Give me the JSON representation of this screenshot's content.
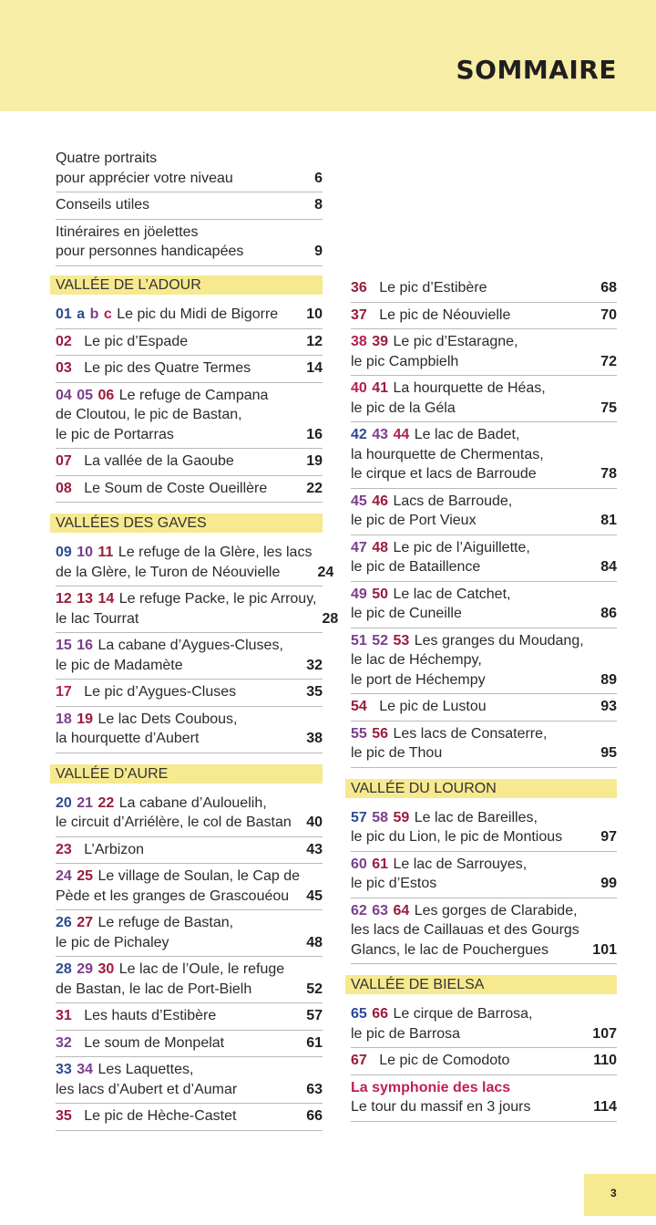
{
  "title": "SOMMAIRE",
  "page_number": "3",
  "colors": {
    "header_band": "#f8eda6",
    "section": "#f6e98f",
    "blue": "#2e4a93",
    "red": "#b32050",
    "purple": "#7a3f8c",
    "maroon": "#9a1c3c"
  },
  "intro": [
    {
      "lines": [
        "Quatre portraits",
        "pour apprécier votre niveau"
      ],
      "page": "6"
    },
    {
      "lines": [
        "Conseils utiles"
      ],
      "page": "8"
    },
    {
      "lines": [
        "Itinéraires en jöelettes",
        "pour personnes handicapées"
      ],
      "page": "9"
    }
  ],
  "left_sections": [
    {
      "title": "VALLÉE DE L’ADOUR",
      "entries": [
        {
          "nums": [
            {
              "t": "01",
              "c": "blue"
            },
            {
              "t": "a",
              "c": "blue"
            },
            {
              "t": "b",
              "c": "purple"
            },
            {
              "t": "c",
              "c": "red"
            }
          ],
          "lines": [
            "Le pic du Midi de Bigorre"
          ],
          "page": "10"
        },
        {
          "nums": [
            {
              "t": "02",
              "c": "maroon"
            }
          ],
          "lines": [
            "Le pic d’Espade"
          ],
          "page": "12"
        },
        {
          "nums": [
            {
              "t": "03",
              "c": "maroon"
            }
          ],
          "lines": [
            "Le pic des Quatre Termes"
          ],
          "page": "14"
        },
        {
          "nums": [
            {
              "t": "04",
              "c": "purple"
            },
            {
              "t": "05",
              "c": "purple"
            },
            {
              "t": "06",
              "c": "maroon"
            }
          ],
          "lines": [
            "Le refuge de Campana",
            "de Cloutou, le pic de Bastan,",
            "le pic de Portarras"
          ],
          "page": "16"
        },
        {
          "nums": [
            {
              "t": "07",
              "c": "maroon"
            }
          ],
          "lines": [
            "La vallée de la Gaoube"
          ],
          "page": "19"
        },
        {
          "nums": [
            {
              "t": "08",
              "c": "maroon"
            }
          ],
          "lines": [
            "Le Soum de Coste Oueillère"
          ],
          "page": "22"
        }
      ]
    },
    {
      "title": "VALLÉES DES GAVES",
      "entries": [
        {
          "nums": [
            {
              "t": "09",
              "c": "blue"
            },
            {
              "t": "10",
              "c": "purple"
            },
            {
              "t": "11",
              "c": "maroon"
            }
          ],
          "lines": [
            "Le refuge de la Glère, les lacs",
            "de la Glère, le Turon de Néouvielle"
          ],
          "page": "24"
        },
        {
          "nums": [
            {
              "t": "12",
              "c": "maroon"
            },
            {
              "t": "13",
              "c": "maroon"
            },
            {
              "t": "14",
              "c": "maroon"
            }
          ],
          "lines": [
            "Le refuge Packe, le pic Arrouy,",
            "le lac Tourrat"
          ],
          "page": "28"
        },
        {
          "nums": [
            {
              "t": "15",
              "c": "purple"
            },
            {
              "t": "16",
              "c": "purple"
            }
          ],
          "lines": [
            "La cabane d’Aygues-Cluses,",
            "le pic de Madamète"
          ],
          "page": "32"
        },
        {
          "nums": [
            {
              "t": "17",
              "c": "red"
            }
          ],
          "lines": [
            "Le pic d’Aygues-Cluses"
          ],
          "page": "35"
        },
        {
          "nums": [
            {
              "t": "18",
              "c": "purple"
            },
            {
              "t": "19",
              "c": "maroon"
            }
          ],
          "lines": [
            "Le lac Dets Coubous,",
            "la hourquette d’Aubert"
          ],
          "page": "38"
        }
      ]
    },
    {
      "title": "VALLÉE D’AURE",
      "entries": [
        {
          "nums": [
            {
              "t": "20",
              "c": "blue"
            },
            {
              "t": "21",
              "c": "purple"
            },
            {
              "t": "22",
              "c": "maroon"
            }
          ],
          "lines": [
            "La cabane d’Aulouelih,",
            "le circuit d’Arriélère, le col de Bastan"
          ],
          "page": "40"
        },
        {
          "nums": [
            {
              "t": "23",
              "c": "maroon"
            }
          ],
          "lines": [
            "L’Arbizon"
          ],
          "page": "43"
        },
        {
          "nums": [
            {
              "t": "24",
              "c": "purple"
            },
            {
              "t": "25",
              "c": "maroon"
            }
          ],
          "lines": [
            "Le village de Soulan, le Cap de",
            "Pède et les granges de Grascouéou"
          ],
          "page": "45"
        },
        {
          "nums": [
            {
              "t": "26",
              "c": "blue"
            },
            {
              "t": "27",
              "c": "maroon"
            }
          ],
          "lines": [
            "Le refuge de Bastan,",
            "le pic de Pichaley"
          ],
          "page": "48"
        },
        {
          "nums": [
            {
              "t": "28",
              "c": "blue"
            },
            {
              "t": "29",
              "c": "purple"
            },
            {
              "t": "30",
              "c": "maroon"
            }
          ],
          "lines": [
            "Le lac de l’Oule, le refuge",
            "de Bastan, le lac de Port-Bielh"
          ],
          "page": "52"
        },
        {
          "nums": [
            {
              "t": "31",
              "c": "maroon"
            }
          ],
          "lines": [
            "Les hauts d’Estibère"
          ],
          "page": "57"
        },
        {
          "nums": [
            {
              "t": "32",
              "c": "purple"
            }
          ],
          "lines": [
            "Le soum de Monpelat"
          ],
          "page": "61"
        },
        {
          "nums": [
            {
              "t": "33",
              "c": "blue"
            },
            {
              "t": "34",
              "c": "purple"
            }
          ],
          "lines": [
            "Les Laquettes,",
            "les lacs d’Aubert et d’Aumar"
          ],
          "page": "63"
        },
        {
          "nums": [
            {
              "t": "35",
              "c": "maroon"
            }
          ],
          "lines": [
            "Le pic de Hèche-Castet"
          ],
          "page": "66"
        }
      ]
    }
  ],
  "right_sections": [
    {
      "title": "",
      "entries": [
        {
          "nums": [
            {
              "t": "36",
              "c": "maroon"
            }
          ],
          "lines": [
            "Le pic d’Estibère"
          ],
          "page": "68"
        },
        {
          "nums": [
            {
              "t": "37",
              "c": "maroon"
            }
          ],
          "lines": [
            "Le pic de Néouvielle"
          ],
          "page": "70"
        },
        {
          "nums": [
            {
              "t": "38",
              "c": "red"
            },
            {
              "t": "39",
              "c": "maroon"
            }
          ],
          "lines": [
            "Le pic d’Estaragne,",
            "le pic Campbielh"
          ],
          "page": "72"
        },
        {
          "nums": [
            {
              "t": "40",
              "c": "red"
            },
            {
              "t": "41",
              "c": "maroon"
            }
          ],
          "lines": [
            "La hourquette de Héas,",
            "le pic de la Géla"
          ],
          "page": "75"
        },
        {
          "nums": [
            {
              "t": "42",
              "c": "blue"
            },
            {
              "t": "43",
              "c": "purple"
            },
            {
              "t": "44",
              "c": "red"
            }
          ],
          "lines": [
            "Le lac de Badet,",
            "la hourquette de Chermentas,",
            "le cirque et lacs de Barroude"
          ],
          "page": "78"
        },
        {
          "nums": [
            {
              "t": "45",
              "c": "purple"
            },
            {
              "t": "46",
              "c": "maroon"
            }
          ],
          "lines": [
            "Lacs de Barroude,",
            "le pic de Port Vieux"
          ],
          "page": "81"
        },
        {
          "nums": [
            {
              "t": "47",
              "c": "purple"
            },
            {
              "t": "48",
              "c": "maroon"
            }
          ],
          "lines": [
            "Le pic de l’Aiguillette,",
            "le pic de Bataillence"
          ],
          "page": "84"
        },
        {
          "nums": [
            {
              "t": "49",
              "c": "purple"
            },
            {
              "t": "50",
              "c": "maroon"
            }
          ],
          "lines": [
            "Le lac de Catchet,",
            "le pic de Cuneille"
          ],
          "page": "86"
        },
        {
          "nums": [
            {
              "t": "51",
              "c": "purple"
            },
            {
              "t": "52",
              "c": "purple"
            },
            {
              "t": "53",
              "c": "maroon"
            }
          ],
          "lines": [
            "Les granges du Moudang,",
            "le lac de Héchempy,",
            "le port de Héchempy"
          ],
          "page": "89"
        },
        {
          "nums": [
            {
              "t": "54",
              "c": "maroon"
            }
          ],
          "lines": [
            "Le pic de Lustou"
          ],
          "page": "93"
        },
        {
          "nums": [
            {
              "t": "55",
              "c": "purple"
            },
            {
              "t": "56",
              "c": "maroon"
            }
          ],
          "lines": [
            "Les lacs de Consaterre,",
            "le pic de Thou"
          ],
          "page": "95"
        }
      ]
    },
    {
      "title": "VALLÉE DU LOURON",
      "entries": [
        {
          "nums": [
            {
              "t": "57",
              "c": "blue"
            },
            {
              "t": "58",
              "c": "purple"
            },
            {
              "t": "59",
              "c": "maroon"
            }
          ],
          "lines": [
            "Le lac de Bareilles,",
            "le pic du Lion, le pic de Montious"
          ],
          "page": "97"
        },
        {
          "nums": [
            {
              "t": "60",
              "c": "purple"
            },
            {
              "t": "61",
              "c": "maroon"
            }
          ],
          "lines": [
            "Le lac de Sarrouyes,",
            "le pic d’Estos"
          ],
          "page": "99"
        },
        {
          "nums": [
            {
              "t": "62",
              "c": "purple"
            },
            {
              "t": "63",
              "c": "purple"
            },
            {
              "t": "64",
              "c": "maroon"
            }
          ],
          "lines": [
            "Les gorges de Clarabide,",
            "les lacs de Caillauas et des Gourgs",
            "Glancs, le lac de Pouchergues"
          ],
          "page": "101"
        }
      ]
    },
    {
      "title": "VALLÉE DE BIELSA",
      "entries": [
        {
          "nums": [
            {
              "t": "65",
              "c": "blue"
            },
            {
              "t": "66",
              "c": "maroon"
            }
          ],
          "lines": [
            "Le cirque de Barrosa,",
            "le pic de Barrosa"
          ],
          "page": "107"
        },
        {
          "nums": [
            {
              "t": "67",
              "c": "maroon"
            }
          ],
          "lines": [
            "Le pic de Comodoto"
          ],
          "page": "110"
        },
        {
          "special": "La symphonie des lacs",
          "nums": [],
          "lines": [
            "Le tour du massif en 3 jours"
          ],
          "page": "114"
        }
      ]
    }
  ]
}
